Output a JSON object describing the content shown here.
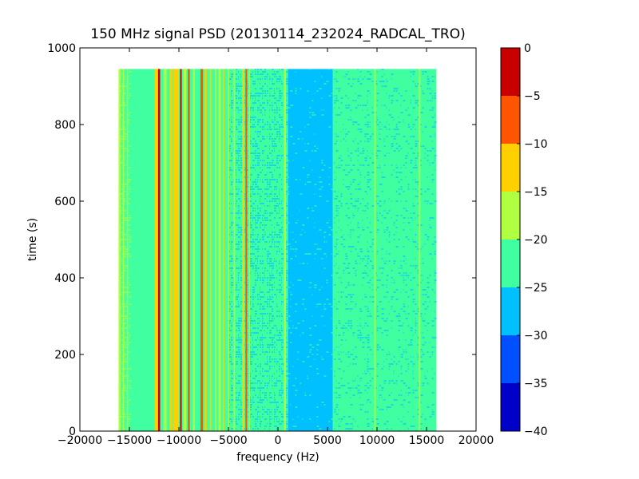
{
  "chart_data": {
    "type": "heatmap",
    "title": "150 MHz signal PSD (20130114_232024_RADCAL_TRO)",
    "xlabel": "frequency (Hz)",
    "ylabel": "time (s)",
    "xlim": [
      -20000,
      20000
    ],
    "ylim": [
      0,
      1000
    ],
    "x_ticks": [
      -20000,
      -15000,
      -10000,
      -5000,
      0,
      5000,
      10000,
      15000,
      20000
    ],
    "x_tick_labels": [
      "−20000",
      "−15000",
      "−10000",
      "−5000",
      "0",
      "5000",
      "10000",
      "15000",
      "20000"
    ],
    "y_ticks": [
      0,
      200,
      400,
      600,
      800,
      1000
    ],
    "y_tick_labels": [
      "0",
      "200",
      "400",
      "600",
      "800",
      "1000"
    ],
    "data_extent": {
      "x": [
        -16000,
        16000
      ],
      "y": [
        0,
        945
      ]
    },
    "colorbar": {
      "levels": [
        -40,
        -35,
        -30,
        -25,
        -20,
        -15,
        -10,
        -5,
        0
      ],
      "tick_labels": [
        "−40",
        "−35",
        "−30",
        "−25",
        "−20",
        "−15",
        "−10",
        "−5",
        "0"
      ],
      "colors": [
        "#0000c8",
        "#0050ff",
        "#00c0ff",
        "#40ffa0",
        "#b0ff40",
        "#ffd000",
        "#ff5500",
        "#c80000"
      ]
    },
    "background_bands": [
      {
        "x": [
          -16000,
          1000
        ],
        "level": -22.5
      },
      {
        "x": [
          1000,
          5600
        ],
        "level": -27.5
      },
      {
        "x": [
          5600,
          16000
        ],
        "level": -22.5
      }
    ],
    "texture_regions": [
      {
        "x": [
          -16000,
          -15000
        ],
        "level": -17.5,
        "density": 0.45
      },
      {
        "x": [
          -5000,
          1000
        ],
        "level": -27.5,
        "density": 0.5
      },
      {
        "x": [
          1000,
          5600
        ],
        "level": -22.5,
        "density": 0.08
      },
      {
        "x": [
          5600,
          9000
        ],
        "level": -27.5,
        "density": 0.22
      },
      {
        "x": [
          9000,
          16000
        ],
        "level": -27.5,
        "density": 0.18
      }
    ],
    "spectral_lines": [
      {
        "x": -16000,
        "width": 200,
        "level": -17.5
      },
      {
        "x": -15600,
        "width": 120,
        "level": -17.5
      },
      {
        "x": -15200,
        "width": 120,
        "level": -17.5
      },
      {
        "x": -14000,
        "width": 150,
        "level": -22.5
      },
      {
        "x": -12300,
        "width": 300,
        "level": -12.5
      },
      {
        "x": -12000,
        "width": 200,
        "level": -2.5
      },
      {
        "x": -11400,
        "width": 300,
        "level": -17.5
      },
      {
        "x": -10800,
        "width": 250,
        "level": -12.5
      },
      {
        "x": -10300,
        "width": 600,
        "level": -12.5
      },
      {
        "x": -9800,
        "width": 160,
        "level": -2.5
      },
      {
        "x": -9400,
        "width": 300,
        "level": -17.5
      },
      {
        "x": -9000,
        "width": 200,
        "level": -7.5
      },
      {
        "x": -8500,
        "width": 200,
        "level": -17.5
      },
      {
        "x": -7700,
        "width": 260,
        "level": -7.5
      },
      {
        "x": -7300,
        "width": 200,
        "level": -12.5
      },
      {
        "x": -6800,
        "width": 150,
        "level": -12.5
      },
      {
        "x": -6300,
        "width": 150,
        "level": -17.5
      },
      {
        "x": -5900,
        "width": 250,
        "level": -17.5
      },
      {
        "x": -5500,
        "width": 150,
        "level": -12.5
      },
      {
        "x": -5000,
        "width": 150,
        "level": -17.5
      },
      {
        "x": -4400,
        "width": 150,
        "level": -17.5
      },
      {
        "x": -3500,
        "width": 200,
        "level": -12.5
      },
      {
        "x": -3200,
        "width": 160,
        "level": -7.5
      },
      {
        "x": -2900,
        "width": 120,
        "level": -17.5
      },
      {
        "x": 700,
        "width": 200,
        "level": -17.5
      },
      {
        "x": 5600,
        "width": 150,
        "level": -22.5
      },
      {
        "x": 9800,
        "width": 150,
        "level": -17.5
      },
      {
        "x": 14300,
        "width": 150,
        "level": -17.5
      }
    ]
  }
}
